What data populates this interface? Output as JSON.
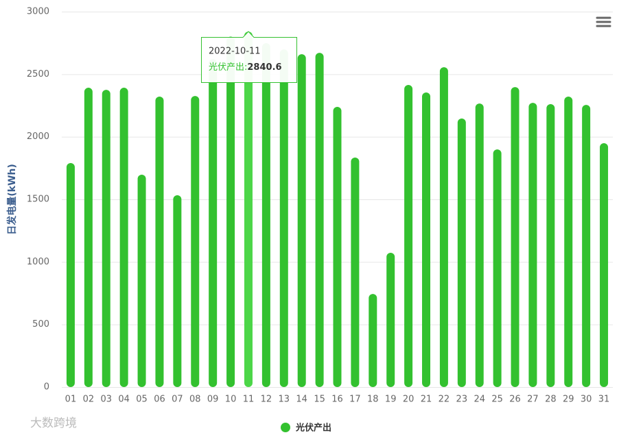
{
  "chart_data": {
    "type": "bar",
    "y_axis_label": "日发电量(kWh)",
    "categories": [
      "01",
      "02",
      "03",
      "04",
      "05",
      "06",
      "07",
      "08",
      "09",
      "10",
      "11",
      "12",
      "13",
      "14",
      "15",
      "16",
      "17",
      "18",
      "19",
      "20",
      "21",
      "22",
      "23",
      "24",
      "25",
      "26",
      "27",
      "28",
      "29",
      "30",
      "31"
    ],
    "series": [
      {
        "name": "光伏产出",
        "color": "#33c12f",
        "hover_color": "#4cd648",
        "values": [
          1790,
          2392,
          2375,
          2392,
          1697,
          2321,
          1533,
          2326,
          2620,
          2800,
          2840.6,
          2748,
          2698,
          2660,
          2671,
          2239,
          1834,
          744,
          1073,
          2414,
          2354,
          2556,
          2146,
          2266,
          1899,
          2397,
          2271,
          2261,
          2321,
          2255,
          1949
        ]
      }
    ],
    "ylim": [
      0,
      3000
    ],
    "yticks": [
      0,
      500,
      1000,
      1500,
      2000,
      2500,
      3000
    ],
    "grid": true,
    "hover_index": 10,
    "tooltip": {
      "header": "2022-10-11",
      "series_label": "光伏产出:"
    },
    "watermark": "大数跨境"
  }
}
